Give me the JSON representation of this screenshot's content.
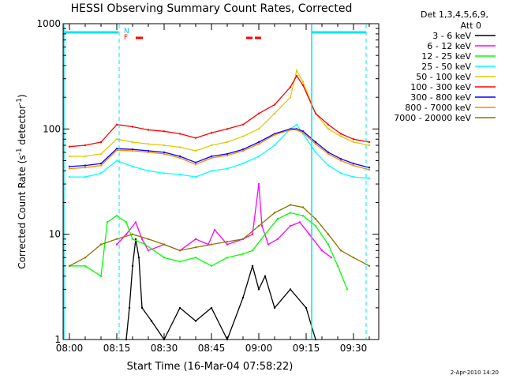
{
  "chart_data": {
    "type": "line",
    "title": "HESSI Observing Summary Count Rates, Corrected",
    "xlabel": "Start Time (16-Mar-04 07:58:22)",
    "ylabel_prefix": "Corrected Count Rate (s",
    "ylabel_sup1": "-1",
    "ylabel_mid": " detector",
    "ylabel_sup2": "-1",
    "ylabel_suffix": ")",
    "yscale": "log",
    "ylim": [
      1,
      1000
    ],
    "xlim_minutes": [
      -2,
      98
    ],
    "x_ticks": [
      {
        "minute": 0,
        "label": "08:00"
      },
      {
        "minute": 15,
        "label": "08:15"
      },
      {
        "minute": 30,
        "label": "08:30"
      },
      {
        "minute": 45,
        "label": "08:45"
      },
      {
        "minute": 60,
        "label": "09:00"
      },
      {
        "minute": 75,
        "label": "09:15"
      },
      {
        "minute": 90,
        "label": "09:30"
      }
    ],
    "y_ticks": [
      {
        "value": 1,
        "label": "1"
      },
      {
        "value": 10,
        "label": "10"
      },
      {
        "value": 100,
        "label": "100"
      },
      {
        "value": 1000,
        "label": "1000"
      }
    ],
    "legend_header": [
      "Det 1,3,4,5,6,9,",
      "Att 0"
    ],
    "legend_position": "right",
    "footer": "2-Apr-2010 14:20",
    "flags": [
      {
        "label": "N",
        "color": "#00bfff"
      },
      {
        "label": "F",
        "color": "#ff0000"
      }
    ],
    "series": [
      {
        "name": "3 - 6 keV",
        "color": "#000000",
        "points": [
          [
            18,
            1
          ],
          [
            19,
            2
          ],
          [
            20,
            5
          ],
          [
            21,
            9
          ],
          [
            22,
            6
          ],
          [
            23,
            2
          ],
          [
            26,
            1.5
          ],
          [
            30,
            1
          ],
          [
            35,
            2
          ],
          [
            40,
            1.5
          ],
          [
            45,
            2
          ],
          [
            50,
            1
          ],
          [
            55,
            2.5
          ],
          [
            58,
            5
          ],
          [
            60,
            3
          ],
          [
            62,
            4
          ],
          [
            65,
            2
          ],
          [
            70,
            3
          ],
          [
            75,
            2
          ],
          [
            78,
            1
          ]
        ]
      },
      {
        "name": "6 - 12 keV",
        "color": "#ff00ff",
        "points": [
          [
            15,
            8
          ],
          [
            18,
            10
          ],
          [
            21,
            13
          ],
          [
            23,
            9
          ],
          [
            25,
            7
          ],
          [
            30,
            8
          ],
          [
            35,
            7
          ],
          [
            40,
            9
          ],
          [
            44,
            8
          ],
          [
            46,
            11
          ],
          [
            50,
            8
          ],
          [
            55,
            9
          ],
          [
            58,
            10
          ],
          [
            60,
            30
          ],
          [
            61,
            12
          ],
          [
            63,
            8
          ],
          [
            66,
            9
          ],
          [
            70,
            12
          ],
          [
            73,
            13
          ],
          [
            76,
            10
          ],
          [
            80,
            7
          ],
          [
            83,
            6
          ]
        ]
      },
      {
        "name": "12 - 25 keV",
        "color": "#00ff00",
        "points": [
          [
            0,
            5
          ],
          [
            5,
            5
          ],
          [
            10,
            4
          ],
          [
            12,
            13
          ],
          [
            15,
            15
          ],
          [
            18,
            13
          ],
          [
            20,
            9
          ],
          [
            24,
            8
          ],
          [
            30,
            6
          ],
          [
            35,
            5.5
          ],
          [
            40,
            6
          ],
          [
            45,
            5
          ],
          [
            50,
            6
          ],
          [
            55,
            6.5
          ],
          [
            58,
            7
          ],
          [
            62,
            10
          ],
          [
            66,
            14
          ],
          [
            70,
            16
          ],
          [
            74,
            15
          ],
          [
            78,
            12
          ],
          [
            82,
            8
          ],
          [
            85,
            5
          ],
          [
            88,
            3
          ]
        ]
      },
      {
        "name": "25 - 50 keV",
        "color": "#00ffff",
        "points": [
          [
            0,
            35
          ],
          [
            5,
            35
          ],
          [
            10,
            38
          ],
          [
            15,
            50
          ],
          [
            20,
            44
          ],
          [
            25,
            40
          ],
          [
            30,
            38
          ],
          [
            35,
            37
          ],
          [
            40,
            35
          ],
          [
            45,
            40
          ],
          [
            50,
            42
          ],
          [
            55,
            47
          ],
          [
            60,
            55
          ],
          [
            65,
            70
          ],
          [
            70,
            100
          ],
          [
            72,
            110
          ],
          [
            74,
            90
          ],
          [
            78,
            60
          ],
          [
            82,
            45
          ],
          [
            86,
            38
          ],
          [
            90,
            35
          ],
          [
            95,
            34
          ]
        ]
      },
      {
        "name": "50 - 100 keV",
        "color": "#ddcc00",
        "points": [
          [
            0,
            55
          ],
          [
            5,
            55
          ],
          [
            10,
            58
          ],
          [
            15,
            80
          ],
          [
            20,
            75
          ],
          [
            25,
            72
          ],
          [
            30,
            70
          ],
          [
            35,
            67
          ],
          [
            40,
            62
          ],
          [
            45,
            70
          ],
          [
            50,
            75
          ],
          [
            55,
            85
          ],
          [
            60,
            100
          ],
          [
            65,
            140
          ],
          [
            70,
            200
          ],
          [
            72,
            360
          ],
          [
            74,
            280
          ],
          [
            78,
            140
          ],
          [
            82,
            100
          ],
          [
            86,
            85
          ],
          [
            90,
            75
          ],
          [
            95,
            70
          ]
        ]
      },
      {
        "name": "100 - 300 keV",
        "color": "#ff0000",
        "points": [
          [
            0,
            68
          ],
          [
            5,
            70
          ],
          [
            10,
            75
          ],
          [
            15,
            110
          ],
          [
            20,
            105
          ],
          [
            25,
            98
          ],
          [
            30,
            95
          ],
          [
            35,
            90
          ],
          [
            40,
            82
          ],
          [
            45,
            92
          ],
          [
            50,
            100
          ],
          [
            55,
            110
          ],
          [
            60,
            140
          ],
          [
            65,
            170
          ],
          [
            70,
            250
          ],
          [
            72,
            320
          ],
          [
            74,
            260
          ],
          [
            78,
            140
          ],
          [
            82,
            110
          ],
          [
            86,
            90
          ],
          [
            90,
            80
          ],
          [
            95,
            75
          ]
        ]
      },
      {
        "name": "300 - 800 keV",
        "color": "#0000ff",
        "points": [
          [
            0,
            44
          ],
          [
            5,
            45
          ],
          [
            10,
            47
          ],
          [
            15,
            65
          ],
          [
            20,
            64
          ],
          [
            25,
            62
          ],
          [
            30,
            60
          ],
          [
            35,
            55
          ],
          [
            40,
            48
          ],
          [
            45,
            55
          ],
          [
            50,
            58
          ],
          [
            55,
            64
          ],
          [
            60,
            75
          ],
          [
            65,
            90
          ],
          [
            70,
            100
          ],
          [
            72,
            100
          ],
          [
            74,
            95
          ],
          [
            78,
            75
          ],
          [
            82,
            60
          ],
          [
            86,
            52
          ],
          [
            90,
            47
          ],
          [
            95,
            43
          ]
        ]
      },
      {
        "name": "800 - 7000 keV",
        "color": "#ff8800",
        "points": [
          [
            0,
            42
          ],
          [
            5,
            43
          ],
          [
            10,
            45
          ],
          [
            15,
            63
          ],
          [
            20,
            62
          ],
          [
            25,
            60
          ],
          [
            30,
            58
          ],
          [
            35,
            53
          ],
          [
            40,
            46
          ],
          [
            45,
            53
          ],
          [
            50,
            56
          ],
          [
            55,
            62
          ],
          [
            60,
            72
          ],
          [
            65,
            88
          ],
          [
            70,
            98
          ],
          [
            72,
            98
          ],
          [
            74,
            92
          ],
          [
            78,
            72
          ],
          [
            82,
            58
          ],
          [
            86,
            50
          ],
          [
            90,
            45
          ],
          [
            95,
            41
          ]
        ]
      },
      {
        "name": "7000 - 20000 keV",
        "color": "#8b7500",
        "points": [
          [
            0,
            5
          ],
          [
            5,
            6
          ],
          [
            10,
            8
          ],
          [
            15,
            9
          ],
          [
            20,
            10
          ],
          [
            25,
            9
          ],
          [
            30,
            8
          ],
          [
            35,
            7
          ],
          [
            40,
            7.5
          ],
          [
            45,
            8
          ],
          [
            50,
            8.5
          ],
          [
            55,
            9
          ],
          [
            60,
            12
          ],
          [
            65,
            16
          ],
          [
            70,
            19
          ],
          [
            74,
            18
          ],
          [
            78,
            14
          ],
          [
            82,
            10
          ],
          [
            86,
            7
          ],
          [
            90,
            6
          ],
          [
            95,
            5
          ]
        ]
      }
    ]
  }
}
